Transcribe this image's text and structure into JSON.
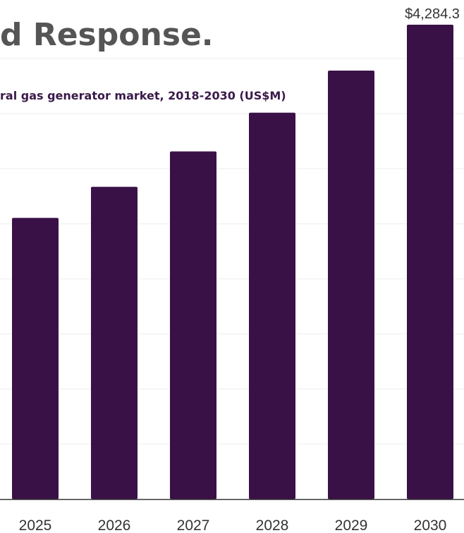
{
  "header": {
    "title": "d Response.",
    "subtitle": "ral gas generator market, 2018-2030 (US$M)"
  },
  "chart_data": {
    "type": "bar",
    "categories": [
      "2025",
      "2026",
      "2027",
      "2028",
      "2029",
      "2030"
    ],
    "values": [
      2540,
      2820,
      3140,
      3490,
      3870,
      4284.3
    ],
    "data_labels": [
      "",
      "",
      "",
      "",
      "",
      "$4,284.3"
    ],
    "bar_color": "#3a1147",
    "ylim": [
      0,
      4284.3
    ],
    "grid": true,
    "legend": "none"
  }
}
